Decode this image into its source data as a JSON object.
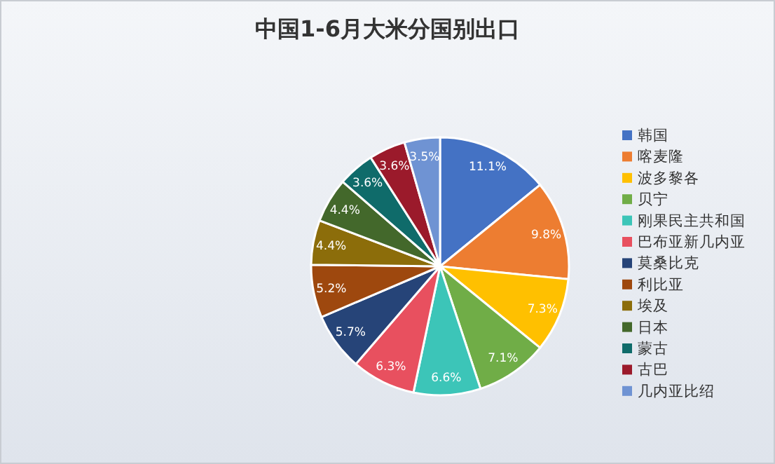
{
  "chart_data": {
    "type": "pie",
    "title": "中国1-6月大米分国别出口",
    "categories": [
      "韩国",
      "喀麦隆",
      "波多黎各",
      "贝宁",
      "刚果民主共和国",
      "巴布亚新几内亚",
      "莫桑比克",
      "利比亚",
      "埃及",
      "日本",
      "蒙古",
      "古巴",
      "几内亚比绍"
    ],
    "values": [
      11.1,
      9.8,
      7.3,
      7.1,
      6.6,
      6.3,
      5.7,
      5.2,
      4.4,
      4.4,
      3.6,
      3.6,
      3.5
    ],
    "value_labels": [
      "11.1%",
      "9.8%",
      "7.3%",
      "7.1%",
      "6.6%",
      "6.3%",
      "5.7%",
      "5.2%",
      "4.4%",
      "4.4%",
      "3.6%",
      "3.6%",
      "3.5%"
    ],
    "colors": [
      "#4472c4",
      "#ed7d31",
      "#ffc000",
      "#70ad47",
      "#3cc5b8",
      "#e8505f",
      "#264478",
      "#9e480e",
      "#8c6d0a",
      "#43682b",
      "#0f6b6a",
      "#9b1a2b",
      "#6f93d3"
    ],
    "legend": "right"
  }
}
